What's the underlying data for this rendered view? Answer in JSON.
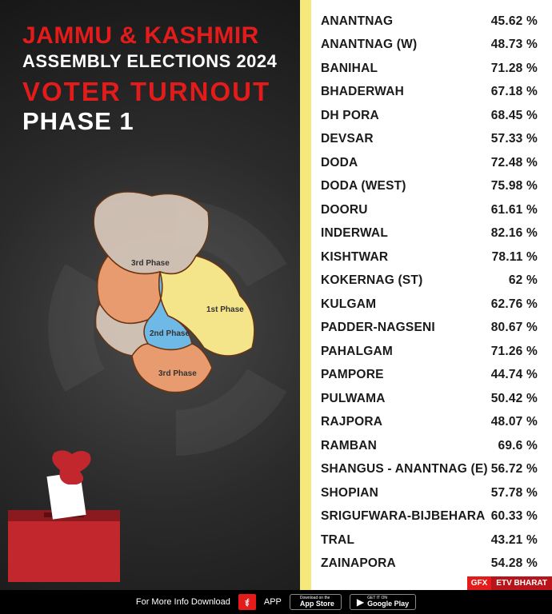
{
  "title": {
    "line1": "JAMMU & KASHMIR",
    "line2": "ASSEMBLY ELECTIONS 2024",
    "line3": "VOTER  TURNOUT",
    "line4": "PHASE 1"
  },
  "colors": {
    "accent_red": "#e41b1b",
    "yellow_bar": "#f5e97b",
    "bg_dark": "#191919",
    "text_white": "#ffffff",
    "text_black": "#1a1a1a",
    "map_phase1_fill": "#f4e58a",
    "map_phase2_fill": "#6fb9e6",
    "map_phase3_fill": "#e89b6f",
    "map_light_fill": "#e8d6c8",
    "map_stroke": "#6b3410",
    "ballot_red": "#c1272d",
    "ballot_dark": "#8b1a1f"
  },
  "map_labels": {
    "phase1": "1st Phase",
    "phase2": "2nd Phase",
    "phase3": "3rd Phase"
  },
  "data": [
    {
      "constituency": "ANANTNAG",
      "pct": "45.62 %"
    },
    {
      "constituency": "ANANTNAG (W)",
      "pct": "48.73 %"
    },
    {
      "constituency": "BANIHAL",
      "pct": "71.28 %"
    },
    {
      "constituency": "BHADERWAH",
      "pct": "67.18 %"
    },
    {
      "constituency": "DH PORA",
      "pct": "68.45 %"
    },
    {
      "constituency": "DEVSAR",
      "pct": "57.33 %"
    },
    {
      "constituency": "DODA",
      "pct": "72.48 %"
    },
    {
      "constituency": "DODA (WEST)",
      "pct": "75.98 %"
    },
    {
      "constituency": "DOORU",
      "pct": "61.61 %"
    },
    {
      "constituency": "INDERWAL",
      "pct": "82.16 %"
    },
    {
      "constituency": "KISHTWAR",
      "pct": "78.11 %"
    },
    {
      "constituency": "KOKERNAG (ST)",
      "pct": "62 %"
    },
    {
      "constituency": "KULGAM",
      "pct": "62.76 %"
    },
    {
      "constituency": "PADDER-NAGSENI",
      "pct": "80.67 %"
    },
    {
      "constituency": "PAHALGAM",
      "pct": "71.26 %"
    },
    {
      "constituency": "PAMPORE",
      "pct": "44.74 %"
    },
    {
      "constituency": "PULWAMA",
      "pct": "50.42 %"
    },
    {
      "constituency": "RAJPORA",
      "pct": "48.07 %"
    },
    {
      "constituency": "RAMBAN",
      "pct": "69.6 %"
    },
    {
      "constituency": "SHANGUS - ANANTNAG (E)",
      "pct": "56.72 %"
    },
    {
      "constituency": "SHOPIAN",
      "pct": "57.78 %"
    },
    {
      "constituency": "SRIGUFWARA-BIJBEHARA",
      "pct": "60.33 %"
    },
    {
      "constituency": "TRAL",
      "pct": "43.21 %"
    },
    {
      "constituency": "ZAINAPORA",
      "pct": "54.28 %"
    }
  ],
  "badge": {
    "gfx": "GFX",
    "etv": "ETV BHARAT"
  },
  "footer": {
    "download_text": "For More Info Download",
    "app_text": "APP",
    "appstore_small": "Download on the",
    "appstore_big": "App Store",
    "gplay_small": "GET IT ON",
    "gplay_big": "Google Play"
  }
}
